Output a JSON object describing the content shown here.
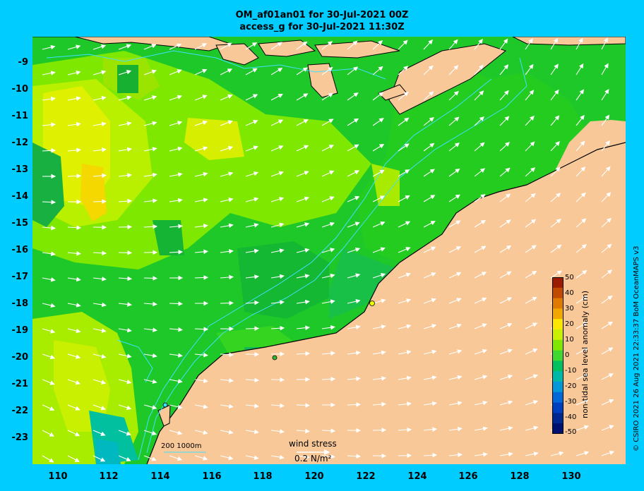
{
  "title_line1": "OM_af01an01 for 30-Jul-2021 00Z",
  "title_line2": "access_g for 30-Jul-2021 11:30Z",
  "y_ticks": [
    "-9",
    "-10",
    "-11",
    "-12",
    "-13",
    "-14",
    "-15",
    "-16",
    "-17",
    "-18",
    "-19",
    "-20",
    "-21",
    "-22",
    "-23"
  ],
  "x_ticks": [
    "110",
    "112",
    "114",
    "116",
    "118",
    "120",
    "122",
    "124",
    "126",
    "128",
    "130"
  ],
  "colorbar": {
    "label": "non-tidal sea level anomaly (cm)",
    "ticks": [
      "50",
      "40",
      "30",
      "20",
      "10",
      "0",
      "-10",
      "-20",
      "-30",
      "-40",
      "-50"
    ],
    "colors": [
      "#9b1a00",
      "#c24a00",
      "#e07a00",
      "#f2a600",
      "#fae800",
      "#c8f000",
      "#80e800",
      "#3fd830",
      "#00c060",
      "#00b8a8",
      "#0098d8",
      "#0068d8",
      "#0040c0",
      "#002890",
      "#001070"
    ]
  },
  "legend": {
    "isobath_labels": "200  1000m",
    "wind_title": "wind stress",
    "wind_value": "0.2 N/m²"
  },
  "credit": "© CSIRO 2021  26 Aug 2021 22:33:37 BoM OceanMAPS v3",
  "colors": {
    "land": "#f8c898",
    "coast_shelf": "#c8b088",
    "background": "#00ccff",
    "isobath": "#40e0ff"
  }
}
